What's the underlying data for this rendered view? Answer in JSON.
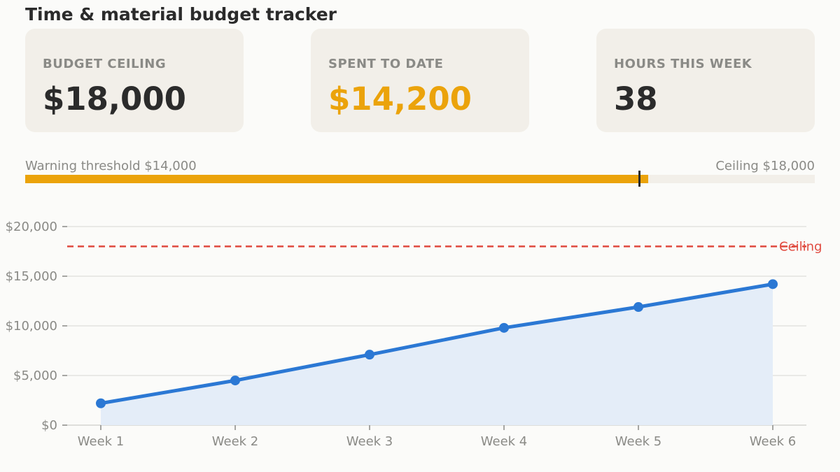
{
  "title": "Time & material budget tracker",
  "cards": [
    {
      "label": "BUDGET CEILING",
      "value": "$18,000"
    },
    {
      "label": "SPENT TO DATE",
      "value": "$14,200"
    },
    {
      "label": "HOURS THIS WEEK",
      "value": "38"
    }
  ],
  "progress": {
    "threshold_label": "Warning threshold $14,000",
    "ceiling_label": "Ceiling $18,000",
    "spent": 14200,
    "threshold": 14000,
    "ceiling": 18000
  },
  "colors": {
    "accent": "#eba30b",
    "line": "#2b78d4",
    "area": "#e4edf8",
    "ceiling_line": "#e04a3f"
  },
  "chart_data": {
    "type": "line",
    "categories": [
      "Week 1",
      "Week 2",
      "Week 3",
      "Week 4",
      "Week 5",
      "Week 6"
    ],
    "series": [
      {
        "values": [
          2200,
          4500,
          7100,
          9800,
          11900,
          14200
        ]
      }
    ],
    "ylim": [
      0,
      20000
    ],
    "yticks": [
      0,
      5000,
      10000,
      15000,
      20000
    ],
    "ytick_labels": [
      "$0",
      "$5,000",
      "$10,000",
      "$15,000",
      "$20,000"
    ],
    "reference_line": {
      "value": 18000,
      "label": "Ceiling"
    },
    "grid": true,
    "area_fill": true
  }
}
